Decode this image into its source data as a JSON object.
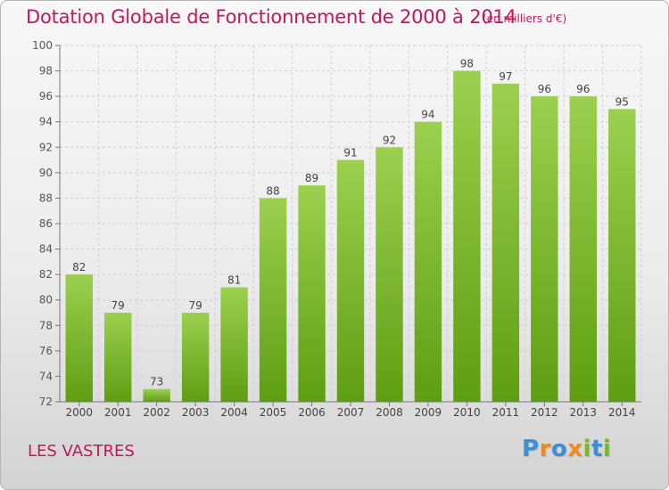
{
  "title": "Dotation Globale de Fonctionnement de 2000 à 2014",
  "unit_note": "(en milliers d'€)",
  "commune": "LES VASTRES",
  "logo": {
    "letters": [
      "P",
      "r",
      "o",
      "x",
      "i",
      "t",
      "i"
    ],
    "colors": [
      "#3a8fd6",
      "#f08a1c",
      "#3a8fd6",
      "#f08a1c",
      "#7ab82a",
      "#3a8fd6",
      "#7ab82a"
    ]
  },
  "colors": {
    "title": "#c2185b",
    "bar_top": "#9bd04e",
    "bar_bottom": "#5e9e12",
    "grid": "#d0d0d0",
    "axis": "#777777"
  },
  "chart_data": {
    "type": "bar",
    "categories": [
      "2000",
      "2001",
      "2002",
      "2003",
      "2004",
      "2005",
      "2006",
      "2007",
      "2008",
      "2009",
      "2010",
      "2011",
      "2012",
      "2013",
      "2014"
    ],
    "values": [
      82,
      79,
      73,
      79,
      81,
      88,
      89,
      91,
      92,
      94,
      98,
      97,
      96,
      96,
      95
    ],
    "ylim": [
      72,
      100
    ],
    "yticks": [
      72,
      74,
      76,
      78,
      80,
      82,
      84,
      86,
      88,
      90,
      92,
      94,
      96,
      98,
      100
    ],
    "grid": true,
    "data_labels": true
  }
}
